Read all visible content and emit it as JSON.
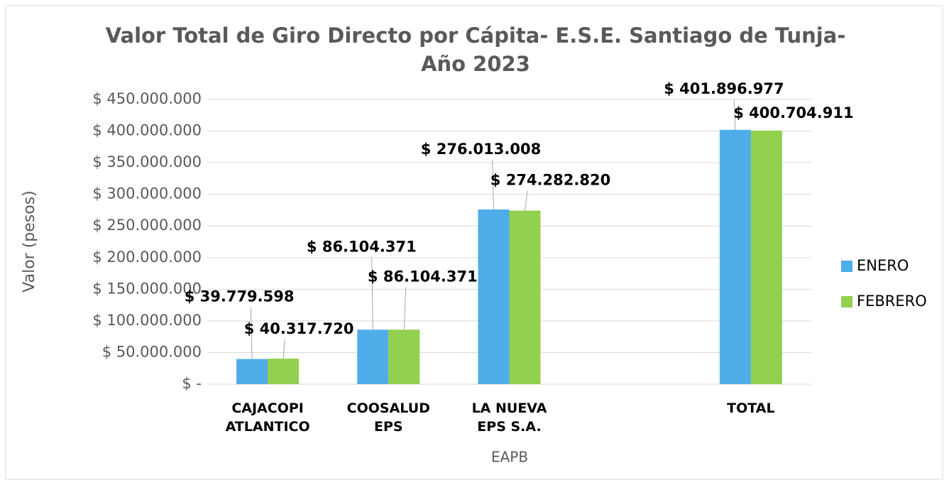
{
  "chart_data": {
    "type": "bar",
    "title": "Valor Total de Giro Directo por Cápita- E.S.E. Santiago de Tunja- Año 2023",
    "x_label": "EAPB",
    "y_label": "Valor (pesos)",
    "categories": [
      "CAJACOPI ATLANTICO",
      "COOSALUD EPS",
      "LA NUEVA EPS S.A.",
      null,
      "TOTAL"
    ],
    "series": [
      {
        "name": "ENERO",
        "color": "#4fadea",
        "values": [
          39779598,
          86104371,
          276013008,
          null,
          401896977
        ],
        "value_labels": [
          "$ 39.779.598",
          "$ 86.104.371",
          "$ 276.013.008",
          null,
          "$ 401.896.977"
        ]
      },
      {
        "name": "FEBRERO",
        "color": "#92d050",
        "values": [
          40317720,
          86104371,
          274282820,
          null,
          400704911
        ],
        "value_labels": [
          "$ 40.317.720",
          "$ 86.104.371",
          "$ 274.282.820",
          null,
          "$ 400.704.911"
        ]
      }
    ],
    "ylim": [
      0,
      450000000
    ],
    "yticks": [
      {
        "value": 0,
        "label": "$ -"
      },
      {
        "value": 50000000,
        "label": "$ 50.000.000"
      },
      {
        "value": 100000000,
        "label": "$ 100.000.000"
      },
      {
        "value": 150000000,
        "label": "$ 150.000.000"
      },
      {
        "value": 200000000,
        "label": "$ 200.000.000"
      },
      {
        "value": 250000000,
        "label": "$ 250.000.000"
      },
      {
        "value": 300000000,
        "label": "$ 300.000.000"
      },
      {
        "value": 350000000,
        "label": "$ 350.000.000"
      },
      {
        "value": 400000000,
        "label": "$ 400.000.000"
      },
      {
        "value": 450000000,
        "label": "$ 450.000.000"
      }
    ],
    "grid": true,
    "legend": "right"
  }
}
